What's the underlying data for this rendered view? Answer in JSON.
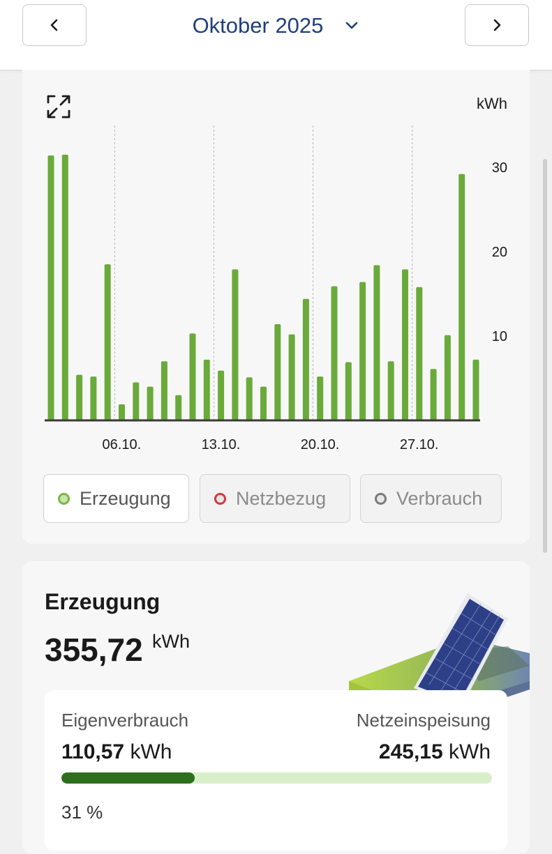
{
  "header": {
    "month_label": "Oktober 2025",
    "prev_icon": "chevron-left-icon",
    "next_icon": "chevron-right-icon",
    "dropdown_icon": "chevron-down-icon"
  },
  "chart": {
    "expand_icon": "expand-icon",
    "unit_label": "kWh"
  },
  "chart_data": {
    "type": "bar",
    "categories": [
      "01.10.",
      "02.10.",
      "03.10.",
      "04.10.",
      "05.10.",
      "06.10.",
      "07.10.",
      "08.10.",
      "09.10.",
      "10.10.",
      "11.10.",
      "12.10.",
      "13.10.",
      "14.10.",
      "15.10.",
      "16.10.",
      "17.10.",
      "18.10.",
      "19.10.",
      "20.10.",
      "21.10.",
      "22.10.",
      "23.10.",
      "24.10.",
      "25.10.",
      "26.10.",
      "27.10.",
      "28.10.",
      "29.10.",
      "30.10.",
      "31.10."
    ],
    "x_tick_labels": [
      "06.10.",
      "13.10.",
      "20.10.",
      "27.10."
    ],
    "series": [
      {
        "name": "Erzeugung",
        "values": [
          31.4,
          31.5,
          5.4,
          5.2,
          18.5,
          1.9,
          4.5,
          4.0,
          7.0,
          3.0,
          10.3,
          7.2,
          5.9,
          17.9,
          5.1,
          4.0,
          11.4,
          10.2,
          14.4,
          5.2,
          15.9,
          6.9,
          16.4,
          18.4,
          7.0,
          17.9,
          15.8,
          6.1,
          10.1,
          29.2,
          7.2
        ]
      }
    ],
    "y_ticks": [
      10,
      20,
      30
    ],
    "ylabel": "kWh",
    "ylim": [
      0,
      35
    ],
    "grid": "vertical dashed lines at week boundaries",
    "bar_color": "#6aaa3a"
  },
  "legend": {
    "items": [
      {
        "label": "Erzeugung",
        "color": "#7ab648",
        "active": true
      },
      {
        "label": "Netzbezug",
        "color": "#d9363e",
        "active": false
      },
      {
        "label": "Verbrauch",
        "color": "#7a7a7a",
        "active": false
      }
    ]
  },
  "summary": {
    "title": "Erzeugung",
    "total_value": "355,72",
    "total_unit": "kWh",
    "illustration_icon": "solar-panel-icon",
    "self_consumption_label": "Eigenverbrauch",
    "self_consumption_value": "110,57",
    "feed_in_label": "Netzeinspeisung",
    "feed_in_value": "245,15",
    "value_unit": "kWh",
    "self_consumption_percent_label": "31 %",
    "self_consumption_fraction": 0.31,
    "bar_fill_color": "#2e6e1e",
    "bar_track_color": "#d9efc9"
  }
}
